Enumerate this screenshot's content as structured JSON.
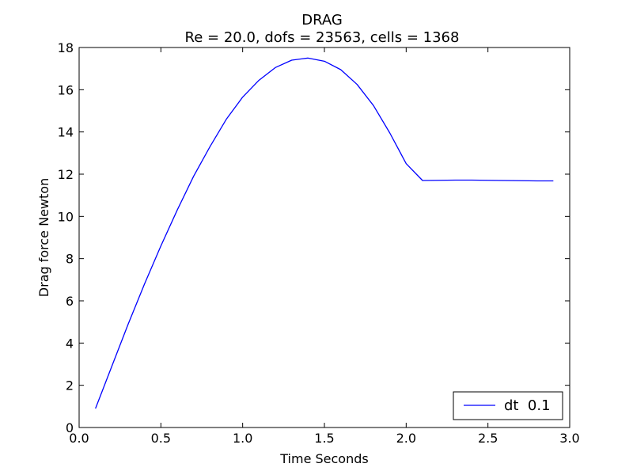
{
  "chart_data": {
    "type": "line",
    "title": "DRAG",
    "subtitle": "Re = 20.0, dofs = 23563, cells = 1368",
    "xlabel": "Time Seconds",
    "ylabel": "Drag force Newton",
    "xlim": [
      0.0,
      3.0
    ],
    "ylim": [
      0,
      18
    ],
    "xticks": [
      0.0,
      0.5,
      1.0,
      1.5,
      2.0,
      2.5,
      3.0
    ],
    "xtick_labels": [
      "0.0",
      "0.5",
      "1.0",
      "1.5",
      "2.0",
      "2.5",
      "3.0"
    ],
    "yticks": [
      0,
      2,
      4,
      6,
      8,
      10,
      12,
      14,
      16,
      18
    ],
    "ytick_labels": [
      "0",
      "2",
      "4",
      "6",
      "8",
      "10",
      "12",
      "14",
      "16",
      "18"
    ],
    "grid": false,
    "legend_position": "lower-right",
    "series": [
      {
        "name": "dt  0.1",
        "color": "#0000ff",
        "x": [
          0.1,
          0.2,
          0.3,
          0.4,
          0.5,
          0.6,
          0.7,
          0.8,
          0.9,
          1.0,
          1.1,
          1.2,
          1.3,
          1.4,
          1.5,
          1.6,
          1.7,
          1.8,
          1.9,
          2.0,
          2.1,
          2.2,
          2.3,
          2.4,
          2.5,
          2.6,
          2.7,
          2.8,
          2.9
        ],
        "y": [
          0.9,
          2.9,
          4.9,
          6.8,
          8.6,
          10.3,
          11.9,
          13.3,
          14.6,
          15.65,
          16.45,
          17.05,
          17.4,
          17.5,
          17.35,
          16.95,
          16.25,
          15.25,
          13.95,
          12.5,
          11.7,
          11.71,
          11.72,
          11.72,
          11.71,
          11.7,
          11.69,
          11.68,
          11.68
        ]
      }
    ]
  }
}
